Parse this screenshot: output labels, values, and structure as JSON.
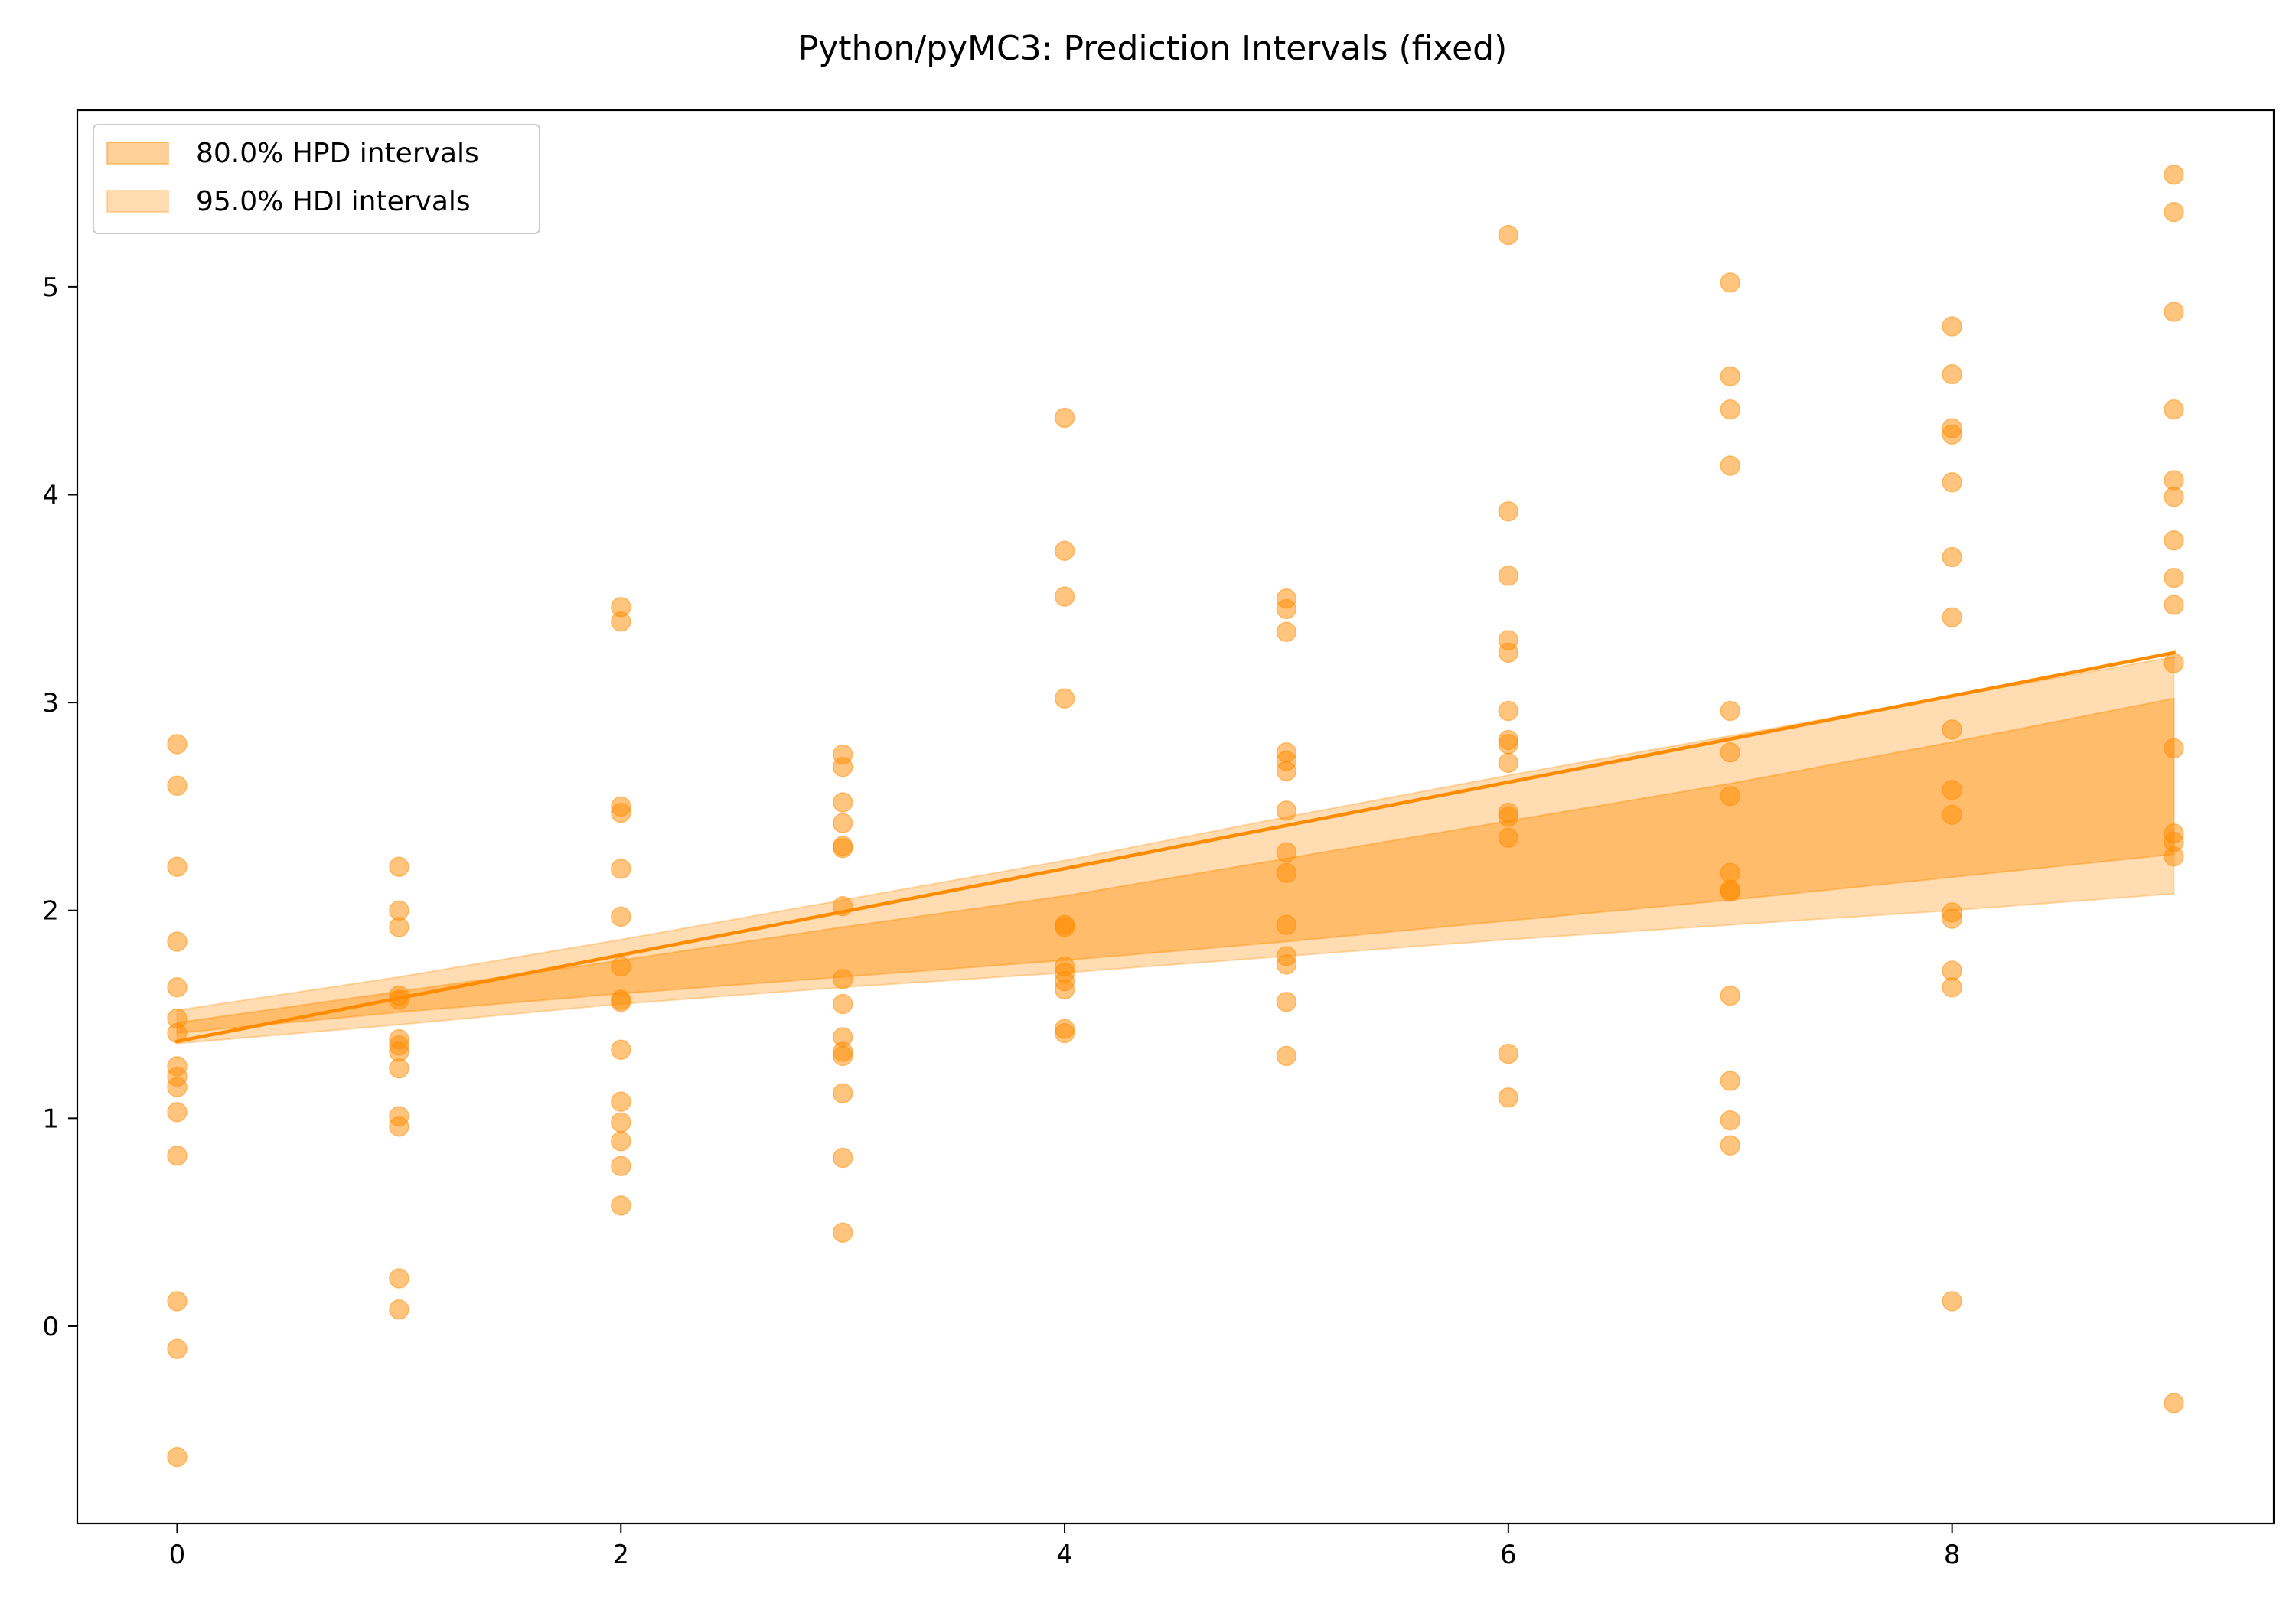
{
  "chart_data": {
    "type": "scatter",
    "title": "Python/pyMC3: Prediction Intervals (fixed)",
    "xlabel": "",
    "ylabel": "",
    "xlim": [
      -0.45,
      9.45
    ],
    "ylim": [
      -0.95,
      5.85
    ],
    "xticks": [
      "0",
      "2",
      "4",
      "6",
      "8"
    ],
    "yticks": [
      "0",
      "1",
      "2",
      "3",
      "4",
      "5"
    ],
    "grid": false,
    "legend_position": "top-left",
    "colors": {
      "points": "#ff8c00",
      "line": "#ff8c00",
      "band_80": "#ff8c00",
      "band_95": "#ff8c00"
    },
    "legend": [
      {
        "label": "80.0% HPD intervals",
        "series": "band_80"
      },
      {
        "label": "95.0% HDI intervals",
        "series": "band_95"
      }
    ],
    "fit_line": {
      "x": [
        0,
        9
      ],
      "y": [
        1.37,
        3.24
      ]
    },
    "band_80": {
      "x": [
        0,
        1,
        2,
        3,
        4,
        5,
        6,
        7,
        8,
        9
      ],
      "lower": [
        1.41,
        1.51,
        1.6,
        1.68,
        1.76,
        1.85,
        1.95,
        2.05,
        2.16,
        2.27
      ],
      "upper": [
        1.46,
        1.61,
        1.76,
        1.92,
        2.07,
        2.25,
        2.43,
        2.61,
        2.81,
        3.02
      ]
    },
    "band_95": {
      "x": [
        0,
        1,
        2,
        3,
        4,
        5,
        6,
        7,
        8,
        9
      ],
      "lower": [
        1.36,
        1.45,
        1.55,
        1.63,
        1.7,
        1.78,
        1.86,
        1.93,
        2.0,
        2.08
      ],
      "upper": [
        1.52,
        1.68,
        1.86,
        2.05,
        2.24,
        2.45,
        2.65,
        2.84,
        3.03,
        3.22
      ]
    },
    "points": [
      {
        "x": 0,
        "y": 2.8
      },
      {
        "x": 0,
        "y": 2.6
      },
      {
        "x": 0,
        "y": 2.21
      },
      {
        "x": 0,
        "y": 1.85
      },
      {
        "x": 0,
        "y": 1.63
      },
      {
        "x": 0,
        "y": 1.48
      },
      {
        "x": 0,
        "y": 1.41
      },
      {
        "x": 0,
        "y": 1.25
      },
      {
        "x": 0,
        "y": 1.2
      },
      {
        "x": 0,
        "y": 1.15
      },
      {
        "x": 0,
        "y": 1.03
      },
      {
        "x": 0,
        "y": 0.82
      },
      {
        "x": 0,
        "y": 0.12
      },
      {
        "x": 0,
        "y": -0.11
      },
      {
        "x": 0,
        "y": -0.63
      },
      {
        "x": 1,
        "y": 2.21
      },
      {
        "x": 1,
        "y": 2.0
      },
      {
        "x": 1,
        "y": 1.92
      },
      {
        "x": 1,
        "y": 1.59
      },
      {
        "x": 1,
        "y": 1.57
      },
      {
        "x": 1,
        "y": 1.38
      },
      {
        "x": 1,
        "y": 1.35
      },
      {
        "x": 1,
        "y": 1.32
      },
      {
        "x": 1,
        "y": 1.24
      },
      {
        "x": 1,
        "y": 1.01
      },
      {
        "x": 1,
        "y": 0.96
      },
      {
        "x": 1,
        "y": 0.23
      },
      {
        "x": 1,
        "y": 0.08
      },
      {
        "x": 2,
        "y": 3.46
      },
      {
        "x": 2,
        "y": 3.39
      },
      {
        "x": 2,
        "y": 2.5
      },
      {
        "x": 2,
        "y": 2.47
      },
      {
        "x": 2,
        "y": 2.2
      },
      {
        "x": 2,
        "y": 1.97
      },
      {
        "x": 2,
        "y": 1.73
      },
      {
        "x": 2,
        "y": 1.57
      },
      {
        "x": 2,
        "y": 1.56
      },
      {
        "x": 2,
        "y": 1.33
      },
      {
        "x": 2,
        "y": 1.08
      },
      {
        "x": 2,
        "y": 0.98
      },
      {
        "x": 2,
        "y": 0.89
      },
      {
        "x": 2,
        "y": 0.77
      },
      {
        "x": 2,
        "y": 0.58
      },
      {
        "x": 3,
        "y": 2.75
      },
      {
        "x": 3,
        "y": 2.69
      },
      {
        "x": 3,
        "y": 2.52
      },
      {
        "x": 3,
        "y": 2.42
      },
      {
        "x": 3,
        "y": 2.31
      },
      {
        "x": 3,
        "y": 2.3
      },
      {
        "x": 3,
        "y": 2.02
      },
      {
        "x": 3,
        "y": 1.67
      },
      {
        "x": 3,
        "y": 1.55
      },
      {
        "x": 3,
        "y": 1.39
      },
      {
        "x": 3,
        "y": 1.32
      },
      {
        "x": 3,
        "y": 1.3
      },
      {
        "x": 3,
        "y": 1.12
      },
      {
        "x": 3,
        "y": 0.81
      },
      {
        "x": 3,
        "y": 0.45
      },
      {
        "x": 4,
        "y": 4.37
      },
      {
        "x": 4,
        "y": 3.73
      },
      {
        "x": 4,
        "y": 3.51
      },
      {
        "x": 4,
        "y": 3.02
      },
      {
        "x": 4,
        "y": 1.93
      },
      {
        "x": 4,
        "y": 1.92
      },
      {
        "x": 4,
        "y": 1.73
      },
      {
        "x": 4,
        "y": 1.7
      },
      {
        "x": 4,
        "y": 1.66
      },
      {
        "x": 4,
        "y": 1.62
      },
      {
        "x": 4,
        "y": 1.43
      },
      {
        "x": 4,
        "y": 1.41
      },
      {
        "x": 5,
        "y": 3.5
      },
      {
        "x": 5,
        "y": 3.45
      },
      {
        "x": 5,
        "y": 3.34
      },
      {
        "x": 5,
        "y": 2.76
      },
      {
        "x": 5,
        "y": 2.72
      },
      {
        "x": 5,
        "y": 2.67
      },
      {
        "x": 5,
        "y": 2.48
      },
      {
        "x": 5,
        "y": 2.28
      },
      {
        "x": 5,
        "y": 2.18
      },
      {
        "x": 5,
        "y": 1.93
      },
      {
        "x": 5,
        "y": 1.78
      },
      {
        "x": 5,
        "y": 1.74
      },
      {
        "x": 5,
        "y": 1.56
      },
      {
        "x": 5,
        "y": 1.3
      },
      {
        "x": 6,
        "y": 5.25
      },
      {
        "x": 6,
        "y": 3.92
      },
      {
        "x": 6,
        "y": 3.61
      },
      {
        "x": 6,
        "y": 3.3
      },
      {
        "x": 6,
        "y": 3.24
      },
      {
        "x": 6,
        "y": 2.96
      },
      {
        "x": 6,
        "y": 2.82
      },
      {
        "x": 6,
        "y": 2.8
      },
      {
        "x": 6,
        "y": 2.71
      },
      {
        "x": 6,
        "y": 2.47
      },
      {
        "x": 6,
        "y": 2.45
      },
      {
        "x": 6,
        "y": 2.35
      },
      {
        "x": 6,
        "y": 1.31
      },
      {
        "x": 6,
        "y": 1.1
      },
      {
        "x": 7,
        "y": 5.02
      },
      {
        "x": 7,
        "y": 4.57
      },
      {
        "x": 7,
        "y": 4.41
      },
      {
        "x": 7,
        "y": 4.14
      },
      {
        "x": 7,
        "y": 2.96
      },
      {
        "x": 7,
        "y": 2.76
      },
      {
        "x": 7,
        "y": 2.55
      },
      {
        "x": 7,
        "y": 2.18
      },
      {
        "x": 7,
        "y": 2.1
      },
      {
        "x": 7,
        "y": 2.09
      },
      {
        "x": 7,
        "y": 1.59
      },
      {
        "x": 7,
        "y": 1.18
      },
      {
        "x": 7,
        "y": 0.99
      },
      {
        "x": 7,
        "y": 0.87
      },
      {
        "x": 8,
        "y": 4.81
      },
      {
        "x": 8,
        "y": 4.58
      },
      {
        "x": 8,
        "y": 4.32
      },
      {
        "x": 8,
        "y": 4.29
      },
      {
        "x": 8,
        "y": 4.06
      },
      {
        "x": 8,
        "y": 3.7
      },
      {
        "x": 8,
        "y": 3.41
      },
      {
        "x": 8,
        "y": 2.87
      },
      {
        "x": 8,
        "y": 2.58
      },
      {
        "x": 8,
        "y": 2.46
      },
      {
        "x": 8,
        "y": 1.99
      },
      {
        "x": 8,
        "y": 1.96
      },
      {
        "x": 8,
        "y": 1.71
      },
      {
        "x": 8,
        "y": 1.63
      },
      {
        "x": 8,
        "y": 0.12
      },
      {
        "x": 9,
        "y": 5.54
      },
      {
        "x": 9,
        "y": 5.36
      },
      {
        "x": 9,
        "y": 4.88
      },
      {
        "x": 9,
        "y": 4.41
      },
      {
        "x": 9,
        "y": 4.07
      },
      {
        "x": 9,
        "y": 3.99
      },
      {
        "x": 9,
        "y": 3.78
      },
      {
        "x": 9,
        "y": 3.6
      },
      {
        "x": 9,
        "y": 3.47
      },
      {
        "x": 9,
        "y": 3.19
      },
      {
        "x": 9,
        "y": 2.78
      },
      {
        "x": 9,
        "y": 2.37
      },
      {
        "x": 9,
        "y": 2.33
      },
      {
        "x": 9,
        "y": 2.26
      },
      {
        "x": 9,
        "y": -0.37
      }
    ]
  }
}
